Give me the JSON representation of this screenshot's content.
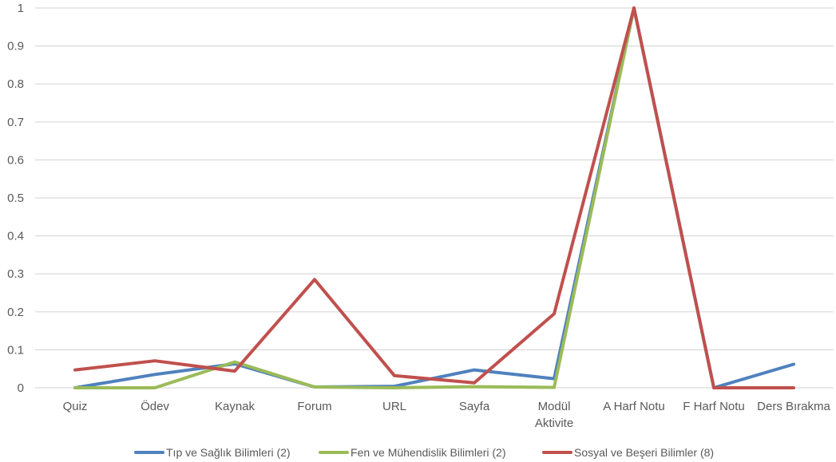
{
  "chart_data": {
    "type": "line",
    "title": "",
    "xlabel": "",
    "ylabel": "",
    "ylim": [
      0,
      1
    ],
    "yticks": [
      "0",
      "0.1",
      "0.2",
      "0.3",
      "0.4",
      "0.5",
      "0.6",
      "0.7",
      "0.8",
      "0.9",
      "1"
    ],
    "grid": true,
    "legend_position": "bottom",
    "categories": [
      [
        "Quiz"
      ],
      [
        "Ödev"
      ],
      [
        "Kaynak"
      ],
      [
        "Forum"
      ],
      [
        "URL"
      ],
      [
        "Sayfa"
      ],
      [
        "Modül",
        "Aktivite"
      ],
      [
        "A Harf Notu"
      ],
      [
        "F Harf Notu"
      ],
      [
        "Ders Bırakma"
      ]
    ],
    "series": [
      {
        "name": "Tıp ve Sağlık Bilimleri (2)",
        "color": "#4f81bd",
        "values": [
          0.0,
          0.035,
          0.063,
          0.002,
          0.004,
          0.047,
          0.024,
          1.0,
          0.0,
          0.062
        ]
      },
      {
        "name": "Fen ve Mühendislik Bilimleri (2)",
        "color": "#9bbb59",
        "values": [
          0.0,
          0.0,
          0.068,
          0.002,
          0.0,
          0.003,
          0.001,
          1.0,
          null,
          null
        ]
      },
      {
        "name": "Sosyal ve Beşeri Bilimler (8)",
        "color": "#c0504d",
        "values": [
          0.047,
          0.071,
          0.044,
          0.285,
          0.032,
          0.013,
          0.195,
          1.0,
          0.0,
          0.0
        ]
      }
    ]
  }
}
